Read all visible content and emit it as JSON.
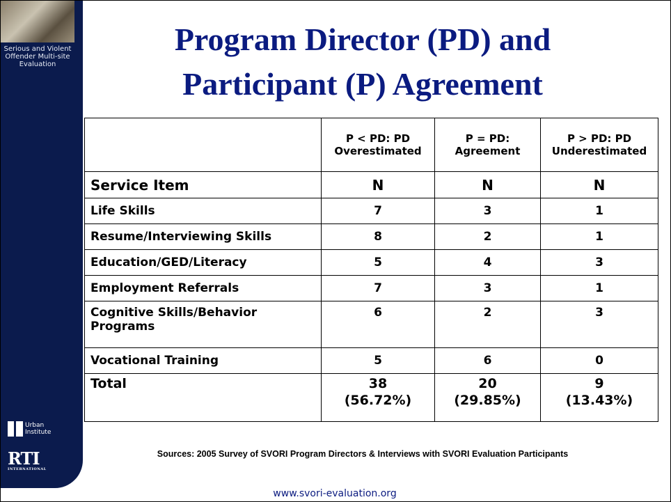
{
  "sidebar": {
    "label": "Serious and Violent Offender Multi-site Evaluation",
    "logo_1": "Urban Institute",
    "logo_2": "RTI",
    "logo_2_sub": "INTERNATIONAL"
  },
  "header": {
    "title_lines": [
      "Program Director (PD) and",
      "Participant (P) Agreement"
    ]
  },
  "table": {
    "columns": [
      "",
      "P < PD: PD Overestimated",
      "P = PD: Agreement",
      "P > PD: PD Underestimated"
    ],
    "subheader": [
      "Service Item",
      "N",
      "N",
      "N"
    ],
    "rows": [
      [
        "Life Skills",
        7,
        3,
        1
      ],
      [
        "Resume/Interviewing Skills",
        8,
        2,
        1
      ],
      [
        "Education/GED/Literacy",
        5,
        4,
        3
      ],
      [
        "Employment Referrals",
        7,
        3,
        1
      ],
      [
        "Cognitive Skills/Behavior Programs",
        6,
        2,
        3
      ],
      [
        "Vocational Training",
        5,
        6,
        0
      ]
    ],
    "total": {
      "label": "Total",
      "cells": [
        {
          "n": 38,
          "percent": "(56.72%)"
        },
        {
          "n": 20,
          "percent": "(29.85%)"
        },
        {
          "n": 9,
          "percent": "(13.43%)"
        }
      ]
    }
  },
  "footer": {
    "source": "Sources: 2005 Survey of SVORI Program Directors & Interviews with SVORI Evaluation Participants",
    "url": "www.svori-evaluation.org"
  }
}
